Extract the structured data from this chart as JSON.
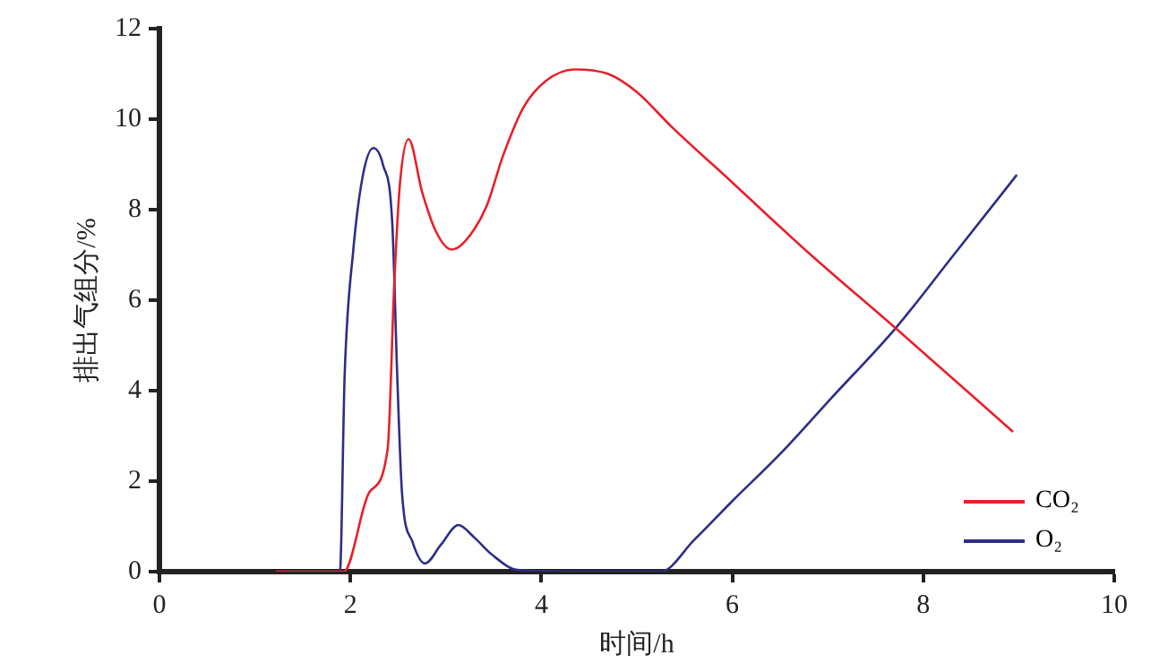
{
  "chart_data": {
    "type": "line",
    "xlabel": "时间/h",
    "ylabel": "排出气组分/%",
    "xlim": [
      0,
      10
    ],
    "xticks": [
      0,
      2,
      4,
      6,
      8,
      10
    ],
    "ylim": [
      0,
      12
    ],
    "yticks": [
      0,
      2,
      4,
      6,
      8,
      10,
      12
    ],
    "grid": false,
    "legend": "bottom right",
    "marker": "none",
    "line_style": "solid",
    "series": [
      {
        "name": "CO₂",
        "color": "#e8202a",
        "x": [
          1.22,
          1.93,
          2.2,
          2.39,
          2.46,
          2.52,
          2.61,
          2.75,
          2.9,
          3.06,
          3.2,
          3.42,
          3.6,
          3.81,
          4.05,
          4.35,
          4.7,
          5.0,
          5.36,
          6.0,
          6.77,
          7.71,
          8.94
        ],
        "values": [
          0,
          0,
          1.76,
          2.71,
          6.4,
          8.6,
          9.56,
          8.4,
          7.5,
          7.12,
          7.3,
          8.05,
          9.2,
          10.25,
          10.85,
          11.1,
          11.0,
          10.6,
          9.84,
          8.6,
          7.1,
          5.38,
          3.09
        ]
      },
      {
        "name": "O₂",
        "color": "#2e2d88",
        "x": [
          1.22,
          1.89,
          1.94,
          2.03,
          2.13,
          2.24,
          2.34,
          2.44,
          2.49,
          2.54,
          2.65,
          2.78,
          2.95,
          3.13,
          3.3,
          3.48,
          3.75,
          4.5,
          5.25,
          5.6,
          6.0,
          6.5,
          7.03,
          7.71,
          8.3,
          8.98
        ],
        "values": [
          0,
          0,
          4.36,
          7.1,
          8.75,
          9.36,
          9.0,
          7.64,
          4.36,
          1.76,
          0.66,
          0.18,
          0.6,
          1.03,
          0.75,
          0.38,
          0.04,
          0,
          0,
          0.7,
          1.56,
          2.6,
          3.82,
          5.38,
          6.95,
          8.77
        ]
      }
    ]
  }
}
